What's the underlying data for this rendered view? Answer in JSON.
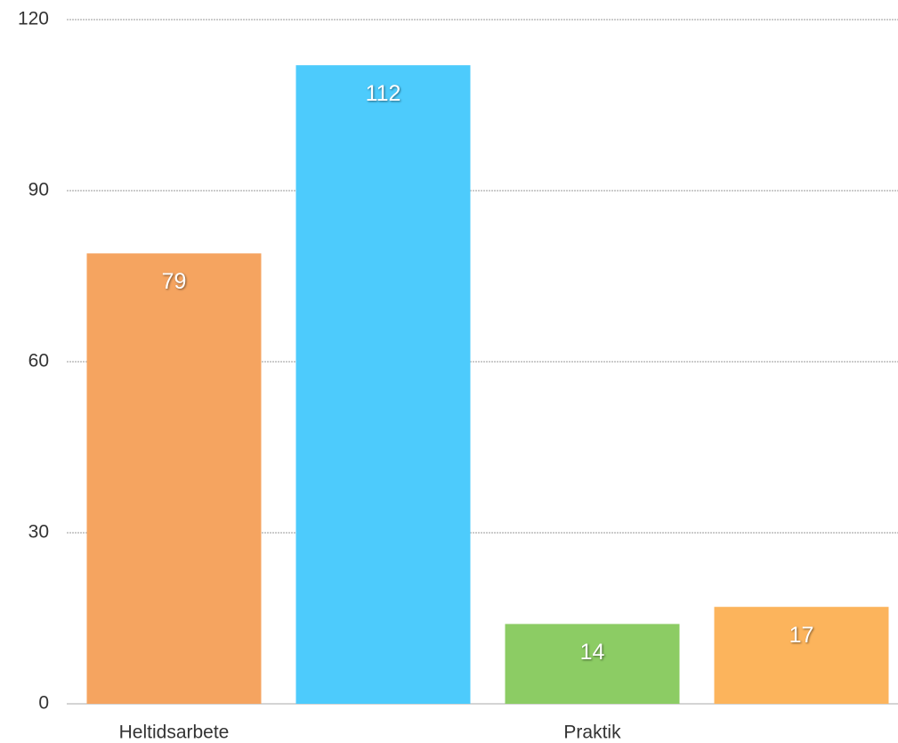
{
  "chart_data": {
    "type": "bar",
    "categories": [
      "Heltidsarbete",
      null,
      "Praktik",
      null
    ],
    "values": [
      79,
      112,
      14,
      17
    ],
    "colors": [
      "#f5a460",
      "#4dcbfc",
      "#8ccc64",
      "#fcb45c"
    ],
    "ylim": [
      0,
      120
    ],
    "yticks": [
      0,
      30,
      60,
      90,
      120
    ],
    "grid": true
  }
}
